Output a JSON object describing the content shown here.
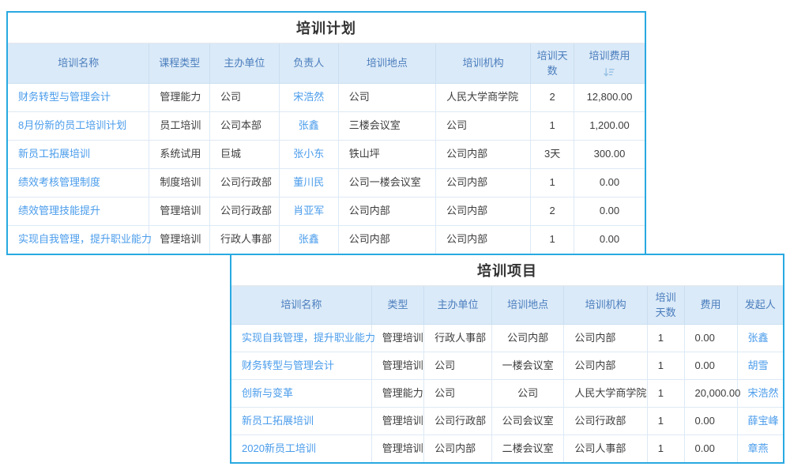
{
  "colors": {
    "outer_border": "#29a9e1",
    "header_bg": "#dbeaf8",
    "header_text": "#4a7dbd",
    "grid_line": "#dde9f5",
    "link_text": "#4a9ceb",
    "title_text": "#333333",
    "body_text": "#3d3d3d",
    "sort_icon": "#94bfe3"
  },
  "tables": [
    {
      "title": "培训计划",
      "columns": [
        {
          "name": "training-name",
          "label": "培训名称",
          "width": "22.2%",
          "align": "left",
          "link": true
        },
        {
          "name": "course-type",
          "label": "课程类型",
          "width": "9.5%",
          "align": "left"
        },
        {
          "name": "organizer",
          "label": "主办单位",
          "width": "10.9%",
          "align": "left"
        },
        {
          "name": "person-in-charge",
          "label": "负责人",
          "width": "9.3%",
          "align": "center",
          "link": true
        },
        {
          "name": "location",
          "label": "培训地点",
          "width": "15.3%",
          "align": "left"
        },
        {
          "name": "institution",
          "label": "培训机构",
          "width": "14.9%",
          "align": "left"
        },
        {
          "name": "days",
          "label": "培训天数",
          "width": "6.8%",
          "align": "center"
        },
        {
          "name": "cost",
          "label": "培训费用",
          "width": "11.1%",
          "align": "center",
          "sort": "descending"
        }
      ],
      "rows": [
        [
          "财务转型与管理会计",
          "管理能力",
          "公司",
          "宋浩然",
          "公司",
          "人民大学商学院",
          "2",
          "12,800.00"
        ],
        [
          "8月份新的员工培训计划",
          "员工培训",
          "公司本部",
          "张鑫",
          "三楼会议室",
          "公司",
          "1",
          "1,200.00"
        ],
        [
          "新员工拓展培训",
          "系统试用",
          "巨城",
          "张小东",
          "铁山坪",
          "公司内部",
          "3天",
          "300.00"
        ],
        [
          "绩效考核管理制度",
          "制度培训",
          "公司行政部",
          "董川民",
          "公司一楼会议室",
          "公司内部",
          "1",
          "0.00"
        ],
        [
          "绩效管理技能提升",
          "管理培训",
          "公司行政部",
          "肖亚军",
          "公司内部",
          "公司内部",
          "2",
          "0.00"
        ],
        [
          "实现自我管理，提升职业能力",
          "管理培训",
          "行政人事部",
          "张鑫",
          "公司内部",
          "公司内部",
          "1",
          "0.00"
        ]
      ]
    },
    {
      "title": "培训项目",
      "columns": [
        {
          "name": "training-name",
          "label": "培训名称",
          "width": "25.4%",
          "align": "left",
          "link": true
        },
        {
          "name": "type",
          "label": "类型",
          "width": "9.5%",
          "align": "left"
        },
        {
          "name": "organizer",
          "label": "主办单位",
          "width": "12.3%",
          "align": "left"
        },
        {
          "name": "location",
          "label": "培训地点",
          "width": "13.1%",
          "align": "center"
        },
        {
          "name": "institution",
          "label": "培训机构",
          "width": "15.1%",
          "align": "left"
        },
        {
          "name": "days",
          "label": "培训天数",
          "width": "6.7%",
          "align": "left"
        },
        {
          "name": "cost",
          "label": "费用",
          "width": "9.6%",
          "align": "left"
        },
        {
          "name": "initiator",
          "label": "发起人",
          "width": "8.3%",
          "align": "left",
          "link": true
        }
      ],
      "rows": [
        [
          "实现自我管理，提升职业能力",
          "管理培训",
          "行政人事部",
          "公司内部",
          "公司内部",
          "1",
          "0.00",
          "张鑫"
        ],
        [
          "财务转型与管理会计",
          "管理培训",
          "公司",
          "一楼会议室",
          "公司内部",
          "1",
          "0.00",
          "胡雪"
        ],
        [
          "创新与变革",
          "管理能力",
          "公司",
          "公司",
          "人民大学商学院",
          "1",
          "20,000.00",
          "宋浩然"
        ],
        [
          "新员工拓展培训",
          "管理培训",
          "公司行政部",
          "公司会议室",
          "公司行政部",
          "1",
          "0.00",
          "薛宝峰"
        ],
        [
          "2020新员工培训",
          "管理培训",
          "公司内部",
          "二楼会议室",
          "公司人事部",
          "1",
          "0.00",
          "章燕"
        ]
      ]
    }
  ]
}
